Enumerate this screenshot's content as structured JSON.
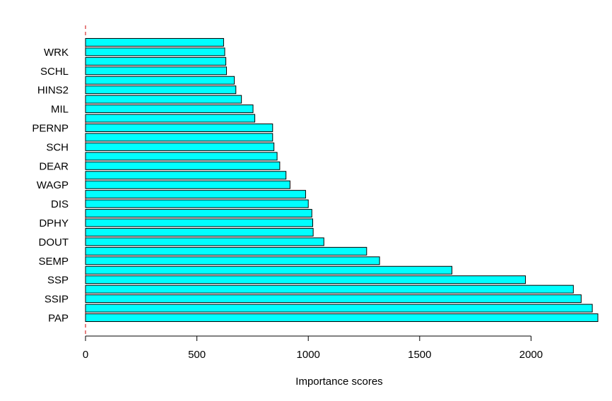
{
  "chart_data": {
    "type": "bar",
    "orientation": "horizontal",
    "title": "",
    "xlabel": "Importance scores",
    "ylabel": "",
    "xlim": [
      0,
      2300
    ],
    "xticks": [
      0,
      500,
      1000,
      1500,
      2000
    ],
    "grid": false,
    "legend": "none",
    "bar_fill": "#00ffff",
    "bar_stroke": "#000000",
    "zero_line_color": "#cc0000",
    "categories": [
      "PAP",
      "",
      "SSIP",
      "",
      "SSP",
      "",
      "SEMP",
      "",
      "DOUT",
      "",
      "DPHY",
      "",
      "DIS",
      "",
      "WAGP",
      "",
      "DEAR",
      "",
      "SCH",
      "",
      "PERNP",
      "",
      "MIL",
      "",
      "HINS2",
      "",
      "SCHL",
      "",
      "WRK",
      ""
    ],
    "values": [
      2300,
      2275,
      2225,
      2190,
      1975,
      1645,
      1320,
      1262,
      1070,
      1022,
      1020,
      1016,
      1000,
      988,
      918,
      900,
      872,
      860,
      846,
      840,
      840,
      760,
      752,
      700,
      675,
      668,
      633,
      630,
      625,
      620
    ]
  }
}
